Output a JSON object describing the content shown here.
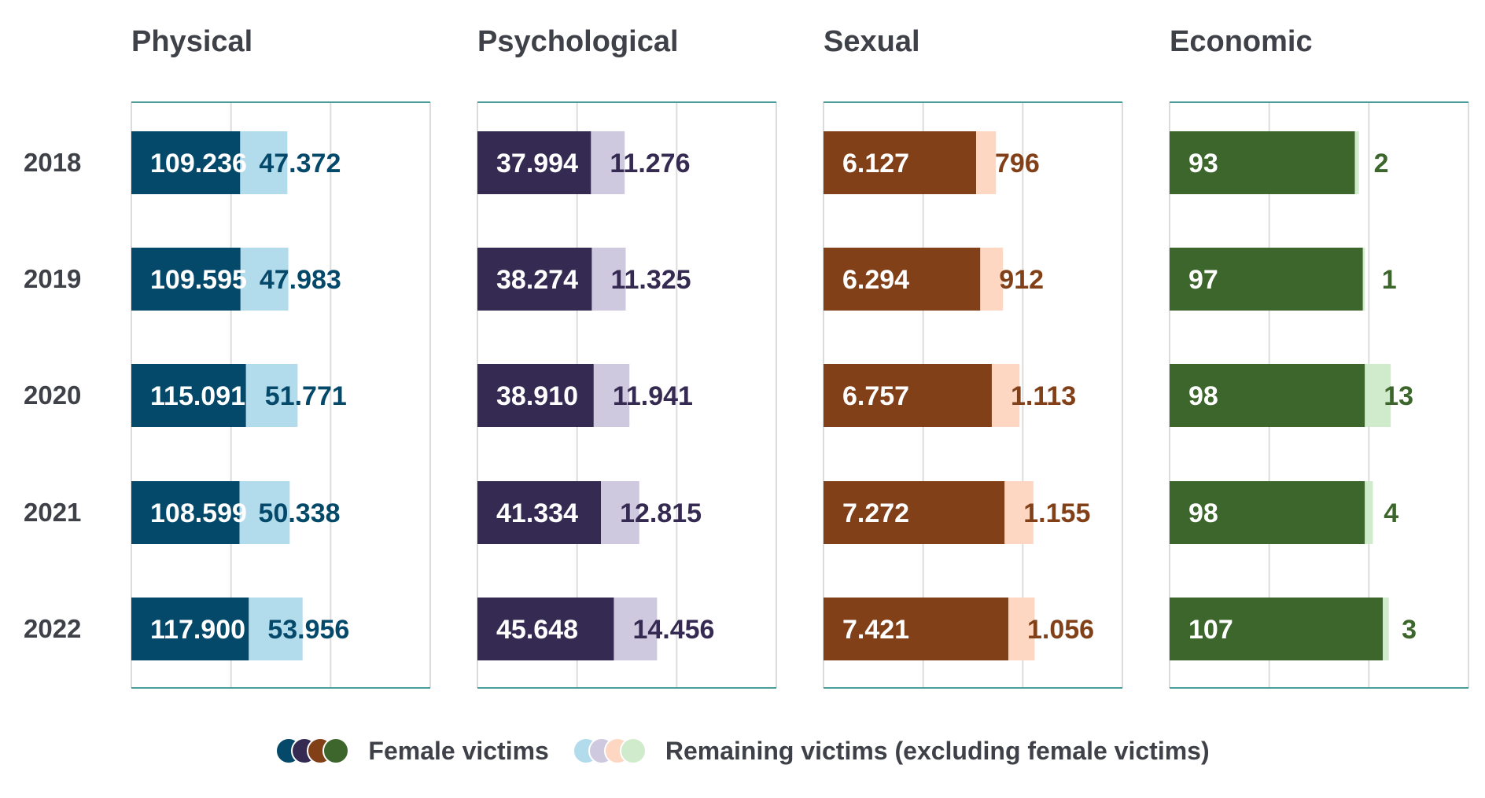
{
  "chart_data": {
    "type": "bar",
    "stacked": true,
    "orientation": "horizontal",
    "categories": [
      "2018",
      "2019",
      "2020",
      "2021",
      "2022"
    ],
    "panels": [
      {
        "title": "Physical",
        "xlim": [
          0,
          300000
        ],
        "colors": {
          "female": "#05496a",
          "remaining": "#b2dbec",
          "label": "#05496a"
        },
        "series": [
          {
            "name": "Female victims",
            "values": [
              109236,
              109595,
              115091,
              108599,
              117900
            ],
            "labels": [
              "109.236",
              "109.595",
              "115.091",
              "108.599",
              "117.900"
            ]
          },
          {
            "name": "Remaining victims (excluding female victims)",
            "values": [
              47372,
              47983,
              51771,
              50338,
              53956
            ],
            "labels": [
              "47.372",
              "47.983",
              "51.771",
              "50.338",
              "53.956"
            ]
          }
        ]
      },
      {
        "title": "Psychological",
        "xlim": [
          0,
          100000
        ],
        "colors": {
          "female": "#352a51",
          "remaining": "#cfc9e0",
          "label": "#352a51"
        },
        "series": [
          {
            "name": "Female victims",
            "values": [
              37994,
              38274,
              38910,
              41334,
              45648
            ],
            "labels": [
              "37.994",
              "38.274",
              "38.910",
              "41.334",
              "45.648"
            ]
          },
          {
            "name": "Remaining victims (excluding female victims)",
            "values": [
              11276,
              11325,
              11941,
              12815,
              14456
            ],
            "labels": [
              "11.276",
              "11.325",
              "11.941",
              "12.815",
              "14.456"
            ]
          }
        ]
      },
      {
        "title": "Sexual",
        "xlim": [
          0,
          12000
        ],
        "colors": {
          "female": "#824019",
          "remaining": "#fdd7c1",
          "label": "#824019"
        },
        "series": [
          {
            "name": "Female victims",
            "values": [
              6127,
              6294,
              6757,
              7272,
              7421
            ],
            "labels": [
              "6.127",
              "6.294",
              "6.757",
              "7.272",
              "7.421"
            ]
          },
          {
            "name": "Remaining victims (excluding female victims)",
            "values": [
              796,
              912,
              1113,
              1155,
              1056
            ],
            "labels": [
              "796",
              "912",
              "1.113",
              "1.155",
              "1.056"
            ]
          }
        ]
      },
      {
        "title": "Economic",
        "xlim": [
          0,
          150
        ],
        "colors": {
          "female": "#3c662b",
          "remaining": "#d0ebcb",
          "label": "#3c662b"
        },
        "series": [
          {
            "name": "Female victims",
            "values": [
              93,
              97,
              98,
              98,
              107
            ],
            "labels": [
              "93",
              "97",
              "98",
              "98",
              "107"
            ]
          },
          {
            "name": "Remaining victims (excluding female victims)",
            "values": [
              2,
              1,
              13,
              4,
              3
            ],
            "labels": [
              "2",
              "1",
              "13",
              "4",
              "3"
            ]
          }
        ]
      }
    ],
    "legend": [
      {
        "label": "Female victims",
        "colors": [
          "#05496a",
          "#352a51",
          "#824019",
          "#3c662b"
        ]
      },
      {
        "label": "Remaining victims (excluding female victims)",
        "colors": [
          "#b2dbec",
          "#cfc9e0",
          "#fdd7c1",
          "#d0ebcb"
        ]
      }
    ],
    "legend_position": "bottom-center",
    "grid": true
  }
}
